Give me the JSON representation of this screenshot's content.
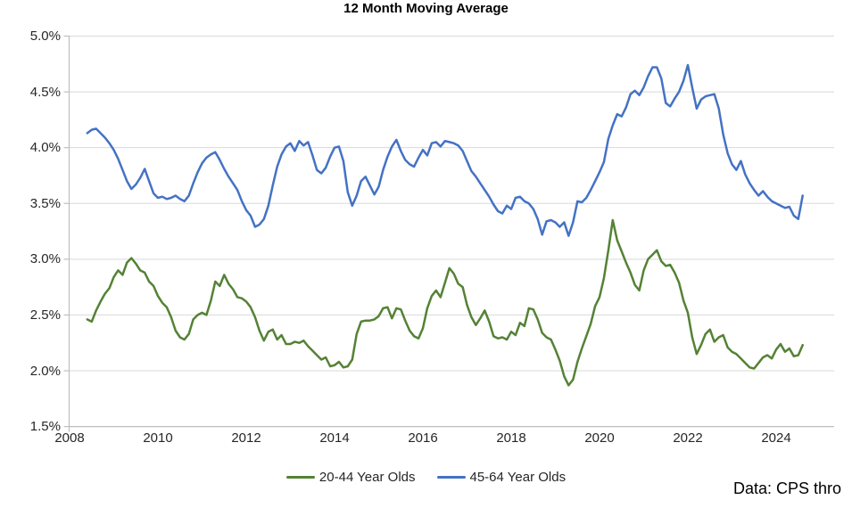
{
  "title": "12 Month Moving Average",
  "source_note": "Data: CPS thro",
  "colors": {
    "accent_green": "#548235",
    "accent_blue": "#4472C4",
    "gridline": "#D9D9D9",
    "axis_line": "#BFBFBF",
    "tick_label": "#262626",
    "title_text": "#000000"
  },
  "legend": [
    {
      "label": "20-44 Year Olds",
      "color": "#548235"
    },
    {
      "label": "45-64 Year Olds",
      "color": "#4472C4"
    }
  ],
  "chart_data": {
    "type": "line",
    "title": "12 Month Moving Average",
    "xlabel": "",
    "ylabel": "",
    "grid": true,
    "legend_position": "bottom",
    "ylim": [
      1.5,
      5.0
    ],
    "xlim": [
      2008,
      2025.3
    ],
    "y_tick_values": [
      1.5,
      2.0,
      2.5,
      3.0,
      3.5,
      4.0,
      4.5,
      5.0
    ],
    "y_tick_labels": [
      "1.5%",
      "2.0%",
      "2.5%",
      "3.0%",
      "3.5%",
      "4.0%",
      "4.5%",
      "5.0%"
    ],
    "x_ticks": [
      2008,
      2010,
      2012,
      2014,
      2016,
      2018,
      2020,
      2022,
      2024
    ],
    "x": [
      2008.4,
      2008.5,
      2008.6,
      2008.7,
      2008.8,
      2008.9,
      2009.0,
      2009.1,
      2009.2,
      2009.3,
      2009.4,
      2009.5,
      2009.6,
      2009.7,
      2009.8,
      2009.9,
      2010.0,
      2010.1,
      2010.2,
      2010.3,
      2010.4,
      2010.5,
      2010.6,
      2010.7,
      2010.8,
      2010.9,
      2011.0,
      2011.1,
      2011.2,
      2011.3,
      2011.4,
      2011.5,
      2011.6,
      2011.7,
      2011.8,
      2011.9,
      2012.0,
      2012.1,
      2012.2,
      2012.3,
      2012.4,
      2012.5,
      2012.6,
      2012.7,
      2012.8,
      2012.9,
      2013.0,
      2013.1,
      2013.2,
      2013.3,
      2013.4,
      2013.5,
      2013.6,
      2013.7,
      2013.8,
      2013.9,
      2014.0,
      2014.1,
      2014.2,
      2014.3,
      2014.4,
      2014.5,
      2014.6,
      2014.7,
      2014.8,
      2014.9,
      2015.0,
      2015.1,
      2015.2,
      2015.3,
      2015.4,
      2015.5,
      2015.6,
      2015.7,
      2015.8,
      2015.9,
      2016.0,
      2016.1,
      2016.2,
      2016.3,
      2016.4,
      2016.5,
      2016.6,
      2016.7,
      2016.8,
      2016.9,
      2017.0,
      2017.1,
      2017.2,
      2017.3,
      2017.4,
      2017.5,
      2017.6,
      2017.7,
      2017.8,
      2017.9,
      2018.0,
      2018.1,
      2018.2,
      2018.3,
      2018.4,
      2018.5,
      2018.6,
      2018.7,
      2018.8,
      2018.9,
      2019.0,
      2019.1,
      2019.2,
      2019.3,
      2019.4,
      2019.5,
      2019.6,
      2019.7,
      2019.8,
      2019.9,
      2020.0,
      2020.1,
      2020.2,
      2020.3,
      2020.4,
      2020.5,
      2020.6,
      2020.7,
      2020.8,
      2020.9,
      2021.0,
      2021.1,
      2021.2,
      2021.3,
      2021.4,
      2021.5,
      2021.6,
      2021.7,
      2021.8,
      2021.9,
      2022.0,
      2022.1,
      2022.2,
      2022.3,
      2022.4,
      2022.5,
      2022.6,
      2022.7,
      2022.8,
      2022.9,
      2023.0,
      2023.1,
      2023.2,
      2023.3,
      2023.4,
      2023.5,
      2023.6,
      2023.7,
      2023.8,
      2023.9,
      2024.0,
      2024.1,
      2024.2,
      2024.3,
      2024.4,
      2024.5,
      2024.6
    ],
    "series": [
      {
        "name": "20-44 Year Olds",
        "color": "#548235",
        "values": [
          2.46,
          2.44,
          2.54,
          2.62,
          2.69,
          2.74,
          2.84,
          2.9,
          2.86,
          2.97,
          3.01,
          2.96,
          2.9,
          2.88,
          2.8,
          2.76,
          2.67,
          2.61,
          2.57,
          2.48,
          2.36,
          2.3,
          2.28,
          2.33,
          2.46,
          2.5,
          2.52,
          2.5,
          2.63,
          2.8,
          2.76,
          2.86,
          2.78,
          2.73,
          2.66,
          2.65,
          2.62,
          2.57,
          2.48,
          2.36,
          2.27,
          2.35,
          2.37,
          2.28,
          2.32,
          2.24,
          2.24,
          2.26,
          2.25,
          2.27,
          2.22,
          2.18,
          2.14,
          2.1,
          2.12,
          2.04,
          2.05,
          2.08,
          2.03,
          2.04,
          2.1,
          2.33,
          2.44,
          2.45,
          2.45,
          2.46,
          2.49,
          2.56,
          2.57,
          2.47,
          2.56,
          2.55,
          2.45,
          2.36,
          2.31,
          2.29,
          2.38,
          2.56,
          2.67,
          2.72,
          2.66,
          2.79,
          2.92,
          2.87,
          2.78,
          2.75,
          2.59,
          2.48,
          2.41,
          2.47,
          2.54,
          2.44,
          2.31,
          2.29,
          2.3,
          2.28,
          2.35,
          2.32,
          2.43,
          2.4,
          2.56,
          2.55,
          2.46,
          2.34,
          2.3,
          2.28,
          2.19,
          2.09,
          1.95,
          1.87,
          1.92,
          2.08,
          2.2,
          2.31,
          2.42,
          2.58,
          2.66,
          2.83,
          3.08,
          3.35,
          3.17,
          3.07,
          2.97,
          2.88,
          2.77,
          2.72,
          2.9,
          3.0,
          3.04,
          3.08,
          2.98,
          2.94,
          2.95,
          2.88,
          2.79,
          2.63,
          2.52,
          2.3,
          2.15,
          2.23,
          2.33,
          2.37,
          2.26,
          2.3,
          2.32,
          2.21,
          2.17,
          2.15,
          2.11,
          2.07,
          2.03,
          2.02,
          2.07,
          2.12,
          2.14,
          2.11,
          2.19,
          2.24,
          2.17,
          2.2,
          2.13,
          2.14,
          2.23
        ]
      },
      {
        "name": "45-64 Year Olds",
        "color": "#4472C4",
        "values": [
          4.13,
          4.16,
          4.17,
          4.13,
          4.09,
          4.04,
          3.98,
          3.9,
          3.8,
          3.7,
          3.63,
          3.67,
          3.73,
          3.81,
          3.7,
          3.59,
          3.55,
          3.56,
          3.54,
          3.55,
          3.57,
          3.54,
          3.52,
          3.57,
          3.68,
          3.78,
          3.86,
          3.91,
          3.94,
          3.96,
          3.89,
          3.81,
          3.74,
          3.68,
          3.62,
          3.52,
          3.44,
          3.39,
          3.29,
          3.31,
          3.36,
          3.48,
          3.66,
          3.83,
          3.94,
          4.01,
          4.04,
          3.97,
          4.06,
          4.02,
          4.05,
          3.93,
          3.8,
          3.77,
          3.82,
          3.92,
          4.0,
          4.01,
          3.88,
          3.6,
          3.48,
          3.57,
          3.7,
          3.74,
          3.66,
          3.58,
          3.65,
          3.8,
          3.92,
          4.01,
          4.07,
          3.97,
          3.89,
          3.85,
          3.83,
          3.91,
          3.98,
          3.93,
          4.04,
          4.05,
          4.01,
          4.06,
          4.05,
          4.04,
          4.02,
          3.97,
          3.88,
          3.79,
          3.74,
          3.68,
          3.62,
          3.56,
          3.49,
          3.43,
          3.41,
          3.48,
          3.45,
          3.55,
          3.56,
          3.52,
          3.5,
          3.45,
          3.36,
          3.22,
          3.34,
          3.35,
          3.33,
          3.29,
          3.33,
          3.21,
          3.33,
          3.52,
          3.51,
          3.55,
          3.62,
          3.7,
          3.78,
          3.87,
          4.08,
          4.2,
          4.3,
          4.28,
          4.36,
          4.48,
          4.51,
          4.47,
          4.54,
          4.64,
          4.72,
          4.72,
          4.62,
          4.4,
          4.37,
          4.44,
          4.5,
          4.6,
          4.74,
          4.54,
          4.35,
          4.43,
          4.46,
          4.47,
          4.48,
          4.35,
          4.12,
          3.95,
          3.85,
          3.8,
          3.88,
          3.76,
          3.68,
          3.62,
          3.57,
          3.61,
          3.56,
          3.52,
          3.5,
          3.48,
          3.46,
          3.47,
          3.39,
          3.36,
          3.57
        ]
      }
    ]
  }
}
